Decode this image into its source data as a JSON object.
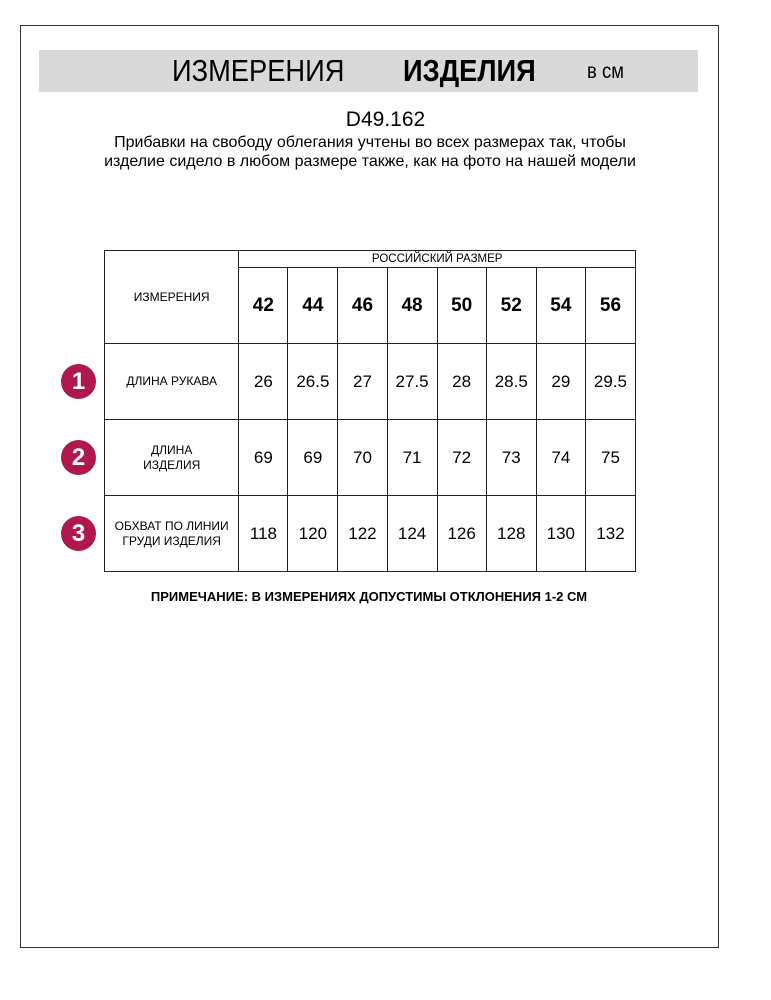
{
  "header": {
    "title_regular": "ИЗМЕРЕНИЯ",
    "title_bold": "ИЗДЕЛИЯ",
    "unit": "в см"
  },
  "product_code": "D49.162",
  "description": "Прибавки на свободу облегания учтены во всех размерах так, чтобы изделие сидело в любом размере также, как на фото на нашей модели",
  "table": {
    "measure_header": "ИЗМЕРЕНИЯ",
    "size_group_header": "РОССИЙСКИЙ РАЗМЕР",
    "sizes": [
      "42",
      "44",
      "46",
      "48",
      "50",
      "52",
      "54",
      "56"
    ],
    "rows": [
      {
        "number": "1",
        "label": "ДЛИНА РУКАВА",
        "values": [
          "26",
          "26.5",
          "27",
          "27.5",
          "28",
          "28.5",
          "29",
          "29.5"
        ]
      },
      {
        "number": "2",
        "label": "ДЛИНА ИЗДЕЛИЯ",
        "values": [
          "69",
          "69",
          "70",
          "71",
          "72",
          "73",
          "74",
          "75"
        ]
      },
      {
        "number": "3",
        "label": "ОБХВАТ ПО ЛИНИИ ГРУДИ ИЗДЕЛИЯ",
        "values": [
          "118",
          "120",
          "122",
          "124",
          "126",
          "128",
          "130",
          "132"
        ]
      }
    ]
  },
  "note": "ПРИМЕЧАНИЕ: В ИЗМЕРЕНИЯХ ДОПУСТИМЫ ОТКЛОНЕНИЯ 1-2 СМ",
  "colors": {
    "banner": "#d9d9d9",
    "badge": "#b0174f"
  }
}
